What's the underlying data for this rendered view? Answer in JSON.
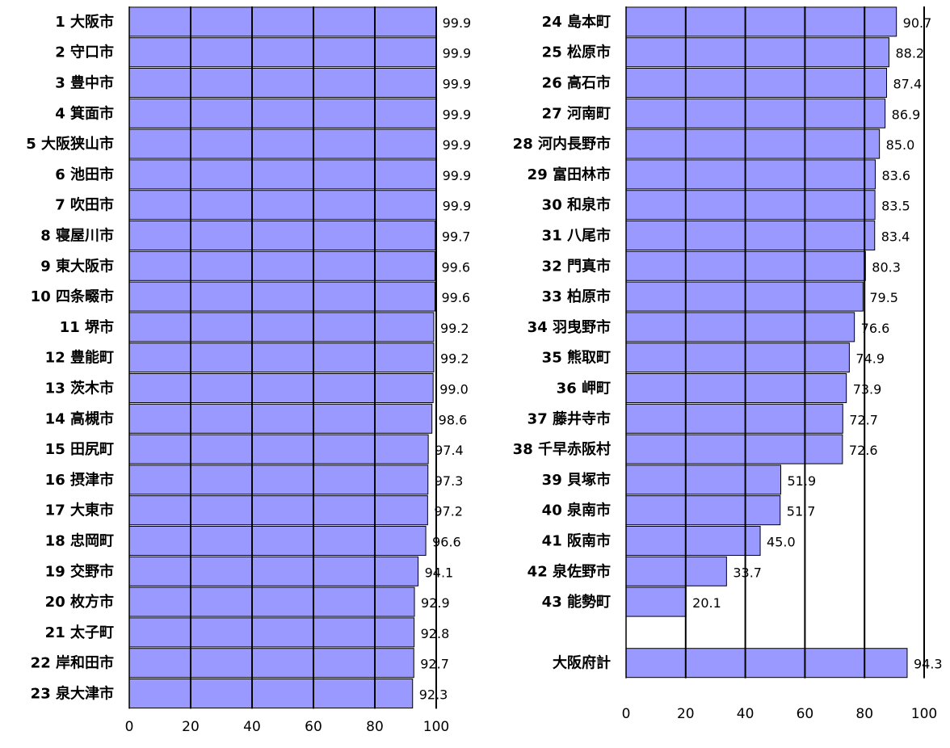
{
  "chart_data": [
    {
      "type": "bar",
      "orientation": "horizontal",
      "categories": [
        "1 大阪市",
        "2 守口市",
        "3 豊中市",
        "4 箕面市",
        "5 大阪狭山市",
        "6 池田市",
        "7 吹田市",
        "8 寝屋川市",
        "9 東大阪市",
        "10 四条畷市",
        "11 堺市",
        "12 豊能町",
        "13 茨木市",
        "14 高槻市",
        "15 田尻町",
        "16 摂津市",
        "17 大東市",
        "18 忠岡町",
        "19 交野市",
        "20 枚方市",
        "21 太子町",
        "22 岸和田市",
        "23 泉大津市"
      ],
      "values": [
        99.9,
        99.9,
        99.9,
        99.9,
        99.9,
        99.9,
        99.9,
        99.7,
        99.6,
        99.6,
        99.2,
        99.2,
        99.0,
        98.6,
        97.4,
        97.3,
        97.2,
        96.6,
        94.1,
        92.9,
        92.8,
        92.7,
        92.3
      ],
      "value_labels": [
        "99.9",
        "99.9",
        "99.9",
        "99.9",
        "99.9",
        "99.9",
        "99.9",
        "99.7",
        "99.6",
        "99.6",
        "99.2",
        "99.2",
        "99.0",
        "98.6",
        "97.4",
        "97.3",
        "97.2",
        "96.6",
        "94.1",
        "92.9",
        "92.8",
        "92.7",
        "92.3"
      ],
      "xlim": [
        0,
        100
      ],
      "ticks": [
        "0",
        "20",
        "40",
        "60",
        "80",
        "100"
      ],
      "bar_color": "#9999ff",
      "grid": "vertical"
    },
    {
      "type": "bar",
      "orientation": "horizontal",
      "categories": [
        "24 島本町",
        "25 松原市",
        "26 高石市",
        "27 河南町",
        "28 河内長野市",
        "29 富田林市",
        "30 和泉市",
        "31 八尾市",
        "32 門真市",
        "33 柏原市",
        "34 羽曳野市",
        "35 熊取町",
        "36 岬町",
        "37 藤井寺市",
        "38 千早赤阪村",
        "39 貝塚市",
        "40 泉南市",
        "41 阪南市",
        "42 泉佐野市",
        "43 能勢町",
        "",
        "大阪府計"
      ],
      "values": [
        90.7,
        88.2,
        87.4,
        86.9,
        85.0,
        83.6,
        83.5,
        83.4,
        80.3,
        79.5,
        76.6,
        74.9,
        73.9,
        72.7,
        72.6,
        51.9,
        51.7,
        45.0,
        33.7,
        20.1,
        null,
        94.3
      ],
      "value_labels": [
        "90.7",
        "88.2",
        "87.4",
        "86.9",
        "85.0",
        "83.6",
        "83.5",
        "83.4",
        "80.3",
        "79.5",
        "76.6",
        "74.9",
        "73.9",
        "72.7",
        "72.6",
        "51.9",
        "51.7",
        "45.0",
        "33.7",
        "20.1",
        "",
        "94.3"
      ],
      "xlim": [
        0,
        100
      ],
      "ticks": [
        "0",
        "20",
        "40",
        "60",
        "80",
        "100"
      ],
      "bar_color": "#9999ff",
      "grid": "vertical"
    }
  ]
}
